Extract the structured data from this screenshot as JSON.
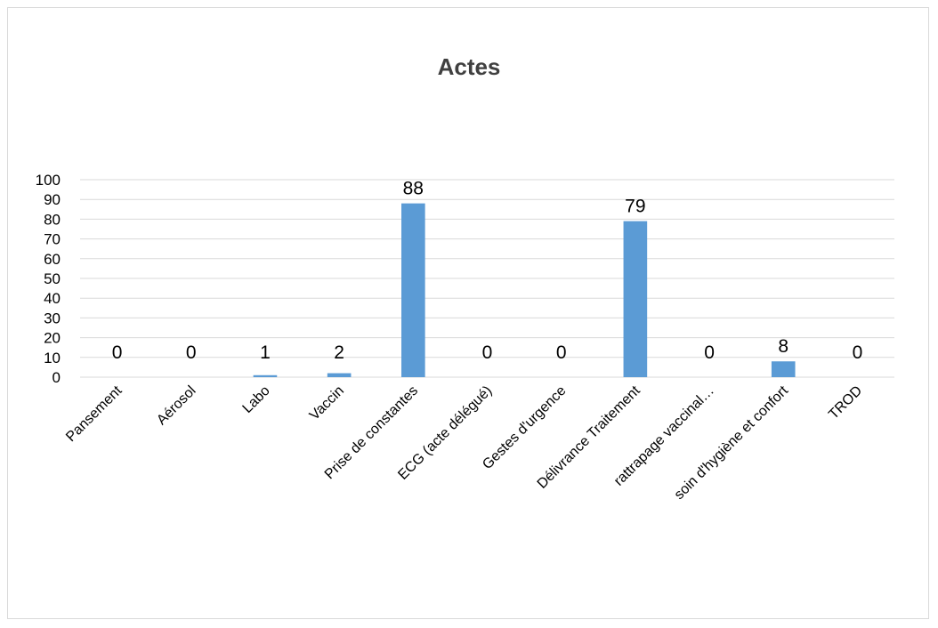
{
  "chart_data": {
    "type": "bar",
    "title": "Actes",
    "categories": [
      "Pansement",
      "Aérosol",
      "Labo",
      "Vaccin",
      "Prise de constantes",
      "ECG (acte délégué)",
      "Gestes d'urgence",
      "Délivrance Traitement",
      "rattrapage vaccinal…",
      "soin d'hygiène et confort",
      "TROD"
    ],
    "values": [
      0,
      0,
      1,
      2,
      88,
      0,
      0,
      79,
      0,
      8,
      0
    ],
    "data_labels": [
      "0",
      "0",
      "1",
      "2",
      "88",
      "0",
      "0",
      "79",
      "0",
      "8",
      "0"
    ],
    "y_ticks": [
      "0",
      "10",
      "20",
      "30",
      "40",
      "50",
      "60",
      "70",
      "80",
      "90",
      "100"
    ],
    "ylim": [
      0,
      100
    ],
    "grid": true,
    "bar_color": "#5b9bd5",
    "gridline_color": "#d9d9d9"
  }
}
